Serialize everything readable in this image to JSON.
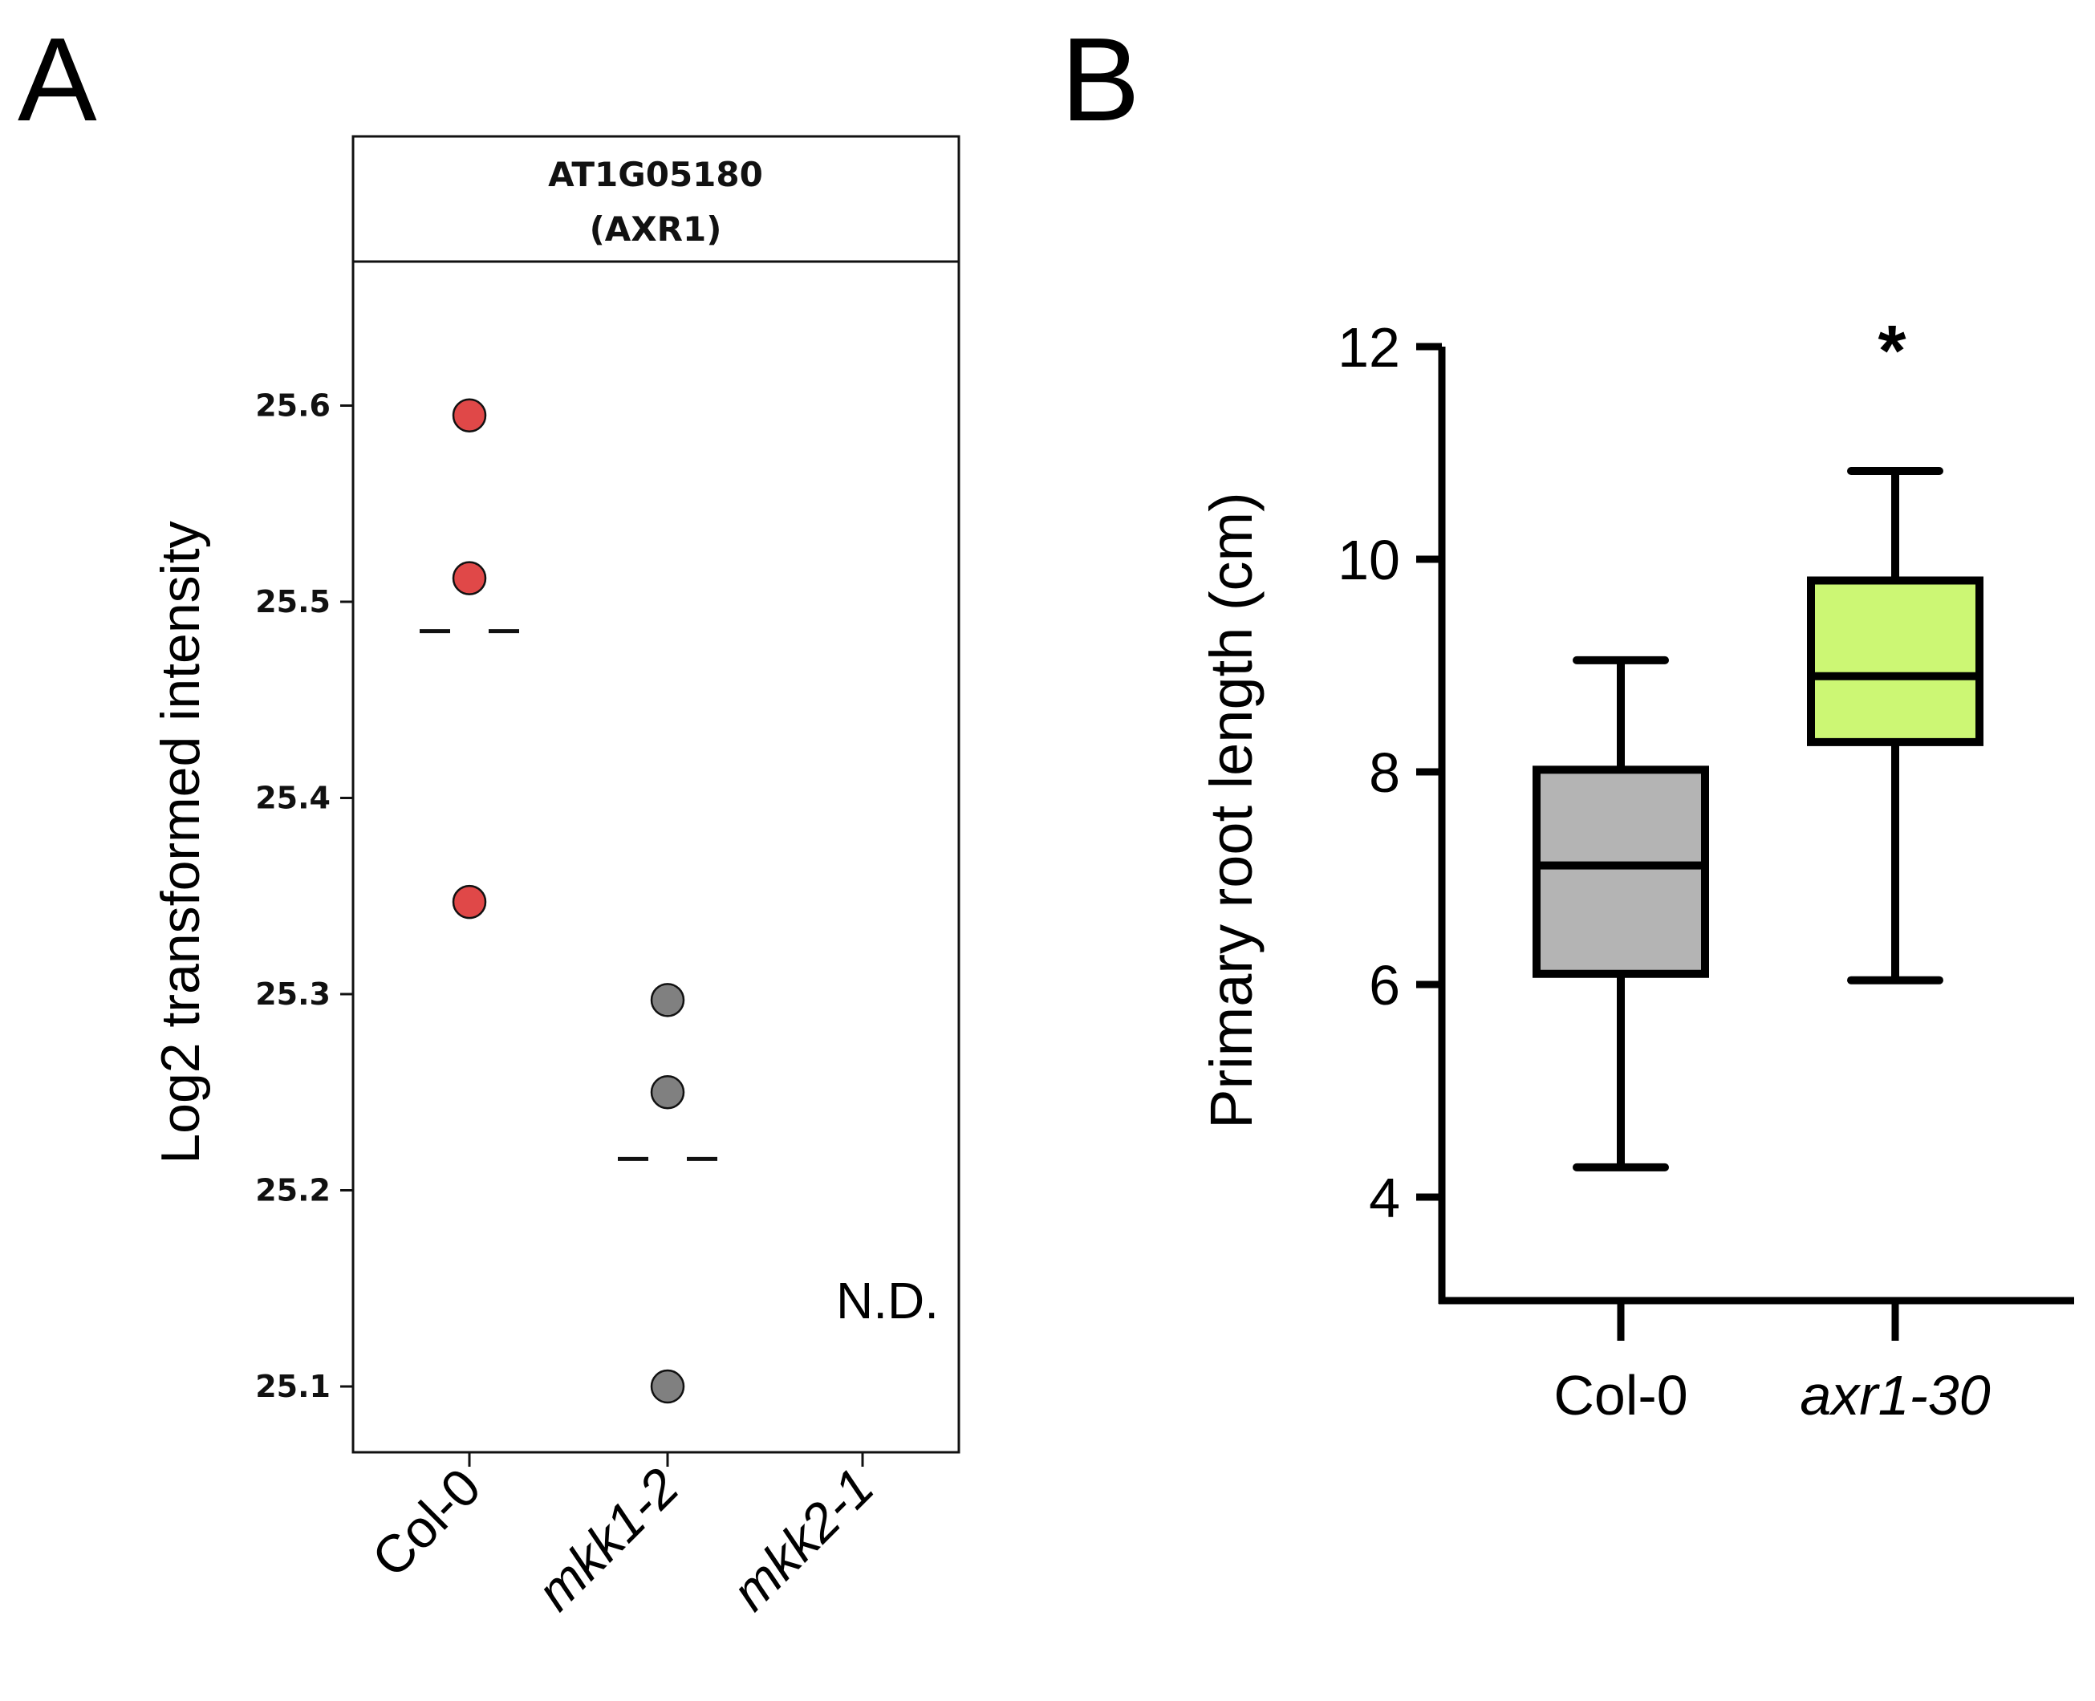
{
  "panels": {
    "a_letter": "A",
    "b_letter": "B"
  },
  "chart_data": [
    {
      "type": "scatter",
      "panel": "A",
      "strip_title_line1": "AT1G05180",
      "strip_title_line2": "(AXR1)",
      "ylabel": "Log2 transformed intensity",
      "ylim": [
        25.05,
        25.67
      ],
      "yticks": [
        25.1,
        25.2,
        25.3,
        25.4,
        25.5,
        25.6
      ],
      "ytick_labels": [
        "25.1",
        "25.2",
        "25.3",
        "25.4",
        "25.5",
        "25.6"
      ],
      "categories": [
        "Col-0",
        "mkk1-2",
        "mkk2-1"
      ],
      "categories_italic": [
        false,
        true,
        true
      ],
      "groups": [
        {
          "name": "Col-0",
          "values": [
            25.595,
            25.512,
            25.347
          ],
          "mean": 25.485,
          "color": "#e04848"
        },
        {
          "name": "mkk1-2",
          "values": [
            25.297,
            25.25,
            25.1
          ],
          "mean": 25.216,
          "color": "#808080"
        },
        {
          "name": "mkk2-1",
          "values": [],
          "mean": null,
          "color": "#808080"
        }
      ],
      "annotation": "N.D."
    },
    {
      "type": "box",
      "panel": "B",
      "ylabel": "Primary root length (cm)",
      "ylim": [
        3.0,
        12.0
      ],
      "yticks": [
        4,
        6,
        8,
        10,
        12
      ],
      "ytick_labels": [
        "4",
        "6",
        "8",
        "10",
        "12"
      ],
      "categories": [
        "Col-0",
        "axr1-30"
      ],
      "categories_italic": [
        false,
        true
      ],
      "boxes": [
        {
          "name": "Col-0",
          "min": 4.28,
          "q1": 6.1,
          "median": 7.12,
          "q3": 8.02,
          "max": 9.05,
          "color": "#b4b4b4"
        },
        {
          "name": "axr1-30",
          "min": 6.04,
          "q1": 8.28,
          "median": 8.9,
          "q3": 9.8,
          "max": 10.83,
          "color": "#ccf774"
        }
      ],
      "significance": "*"
    }
  ]
}
